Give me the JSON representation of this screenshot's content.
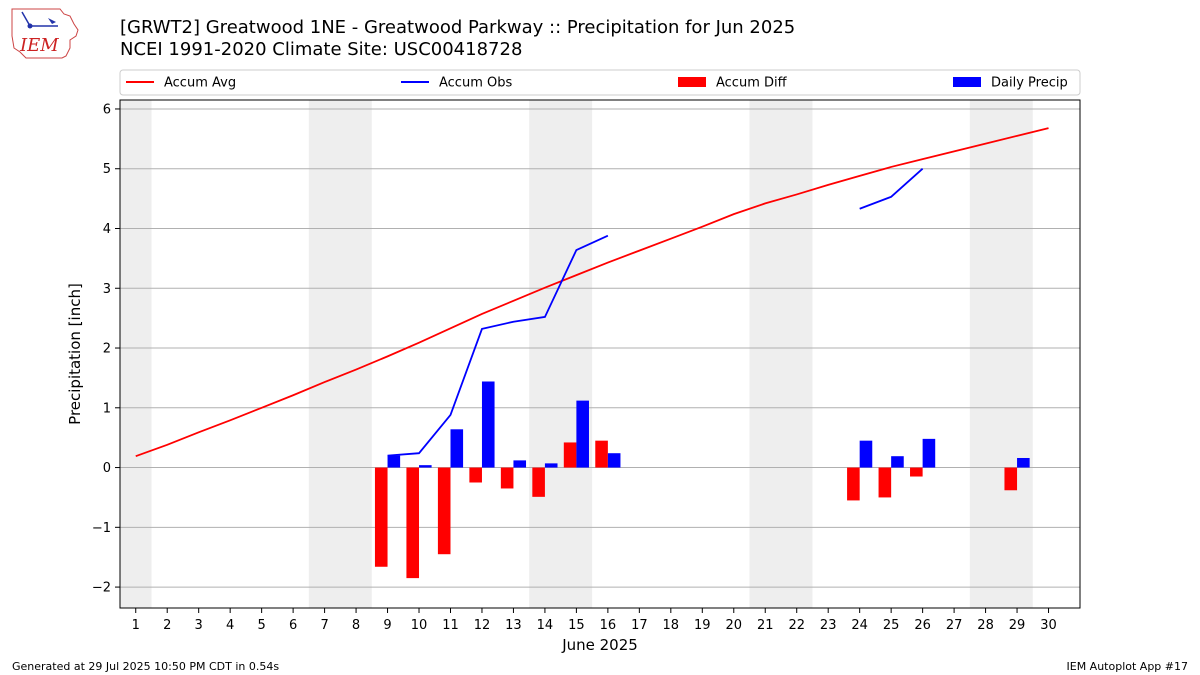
{
  "header": {
    "logo_text": "IEM",
    "title_line1": "[GRWT2] Greatwood 1NE - Greatwood Parkway :: Precipitation for Jun 2025",
    "title_line2": "NCEI 1991-2020 Climate Site: USC00418728"
  },
  "footer": {
    "generated": "Generated at 29 Jul 2025 10:50 PM CDT in 0.54s",
    "app": "IEM Autoplot App #17"
  },
  "colors": {
    "accum_avg": "#ff0000",
    "accum_obs": "#0000ff",
    "accum_diff": "#ff0000",
    "daily_precip": "#0000ff",
    "weekend_shade": "#eeeeee",
    "grid": "#b0b0b0"
  },
  "chart_data": {
    "type": "bar",
    "title": "[GRWT2] Greatwood 1NE - Greatwood Parkway :: Precipitation for Jun 2025",
    "subtitle": "NCEI 1991-2020 Climate Site: USC00418728",
    "xlabel": "June 2025",
    "ylabel": "Precipitation [inch]",
    "xlim": [
      0.5,
      31.0
    ],
    "ylim": [
      -2.35,
      6.15
    ],
    "x_ticks": [
      1,
      2,
      3,
      4,
      5,
      6,
      7,
      8,
      9,
      10,
      11,
      12,
      13,
      14,
      15,
      16,
      17,
      18,
      19,
      20,
      21,
      22,
      23,
      24,
      25,
      26,
      27,
      28,
      29,
      30
    ],
    "y_ticks": [
      6,
      5,
      4,
      3,
      2,
      1,
      0,
      -1,
      -2
    ],
    "y_tick_labels": [
      "6",
      "5",
      "4",
      "3",
      "2",
      "1",
      "0",
      "−1",
      "−2"
    ],
    "grid": "horizontal",
    "legend_position": "top",
    "legend": [
      "Accum Avg",
      "Accum Obs",
      "Accum Diff",
      "Daily Precip"
    ],
    "weekend_shading": [
      [
        1,
        1
      ],
      [
        7,
        8
      ],
      [
        14,
        15
      ],
      [
        21,
        22
      ],
      [
        28,
        29
      ]
    ],
    "series": [
      {
        "name": "Accum Avg",
        "kind": "line",
        "x": [
          1,
          2,
          3,
          4,
          5,
          6,
          7,
          8,
          9,
          10,
          11,
          12,
          13,
          14,
          15,
          16,
          17,
          18,
          19,
          20,
          21,
          22,
          23,
          24,
          25,
          26,
          27,
          28,
          29,
          30
        ],
        "values": [
          0.19,
          0.38,
          0.59,
          0.79,
          1.0,
          1.21,
          1.43,
          1.64,
          1.86,
          2.09,
          2.33,
          2.57,
          2.79,
          3.01,
          3.22,
          3.43,
          3.63,
          3.83,
          4.03,
          4.24,
          4.42,
          4.57,
          4.73,
          4.88,
          5.03,
          5.16,
          5.29,
          5.42,
          5.55,
          5.68
        ]
      },
      {
        "name": "Accum Obs",
        "kind": "line",
        "x": [
          9,
          10,
          11,
          12,
          13,
          14,
          15,
          16,
          24,
          25,
          26
        ],
        "values": [
          0.2,
          0.24,
          0.88,
          2.32,
          2.44,
          2.52,
          3.64,
          3.88,
          4.33,
          4.53,
          5.0
        ],
        "breaks_after": [
          16
        ]
      },
      {
        "name": "Accum Diff",
        "kind": "bar",
        "x": [
          9,
          10,
          11,
          12,
          13,
          14,
          15,
          16,
          24,
          25,
          26,
          29
        ],
        "values": [
          -1.66,
          -1.85,
          -1.45,
          -0.25,
          -0.35,
          -0.49,
          0.42,
          0.45,
          -0.55,
          -0.5,
          -0.15,
          -0.38
        ]
      },
      {
        "name": "Daily Precip",
        "kind": "bar",
        "x": [
          9,
          10,
          11,
          12,
          13,
          14,
          15,
          16,
          24,
          25,
          26,
          29
        ],
        "values": [
          0.2,
          0.04,
          0.64,
          1.44,
          0.12,
          0.07,
          1.12,
          0.24,
          0.45,
          0.19,
          0.48,
          0.16
        ]
      }
    ]
  }
}
